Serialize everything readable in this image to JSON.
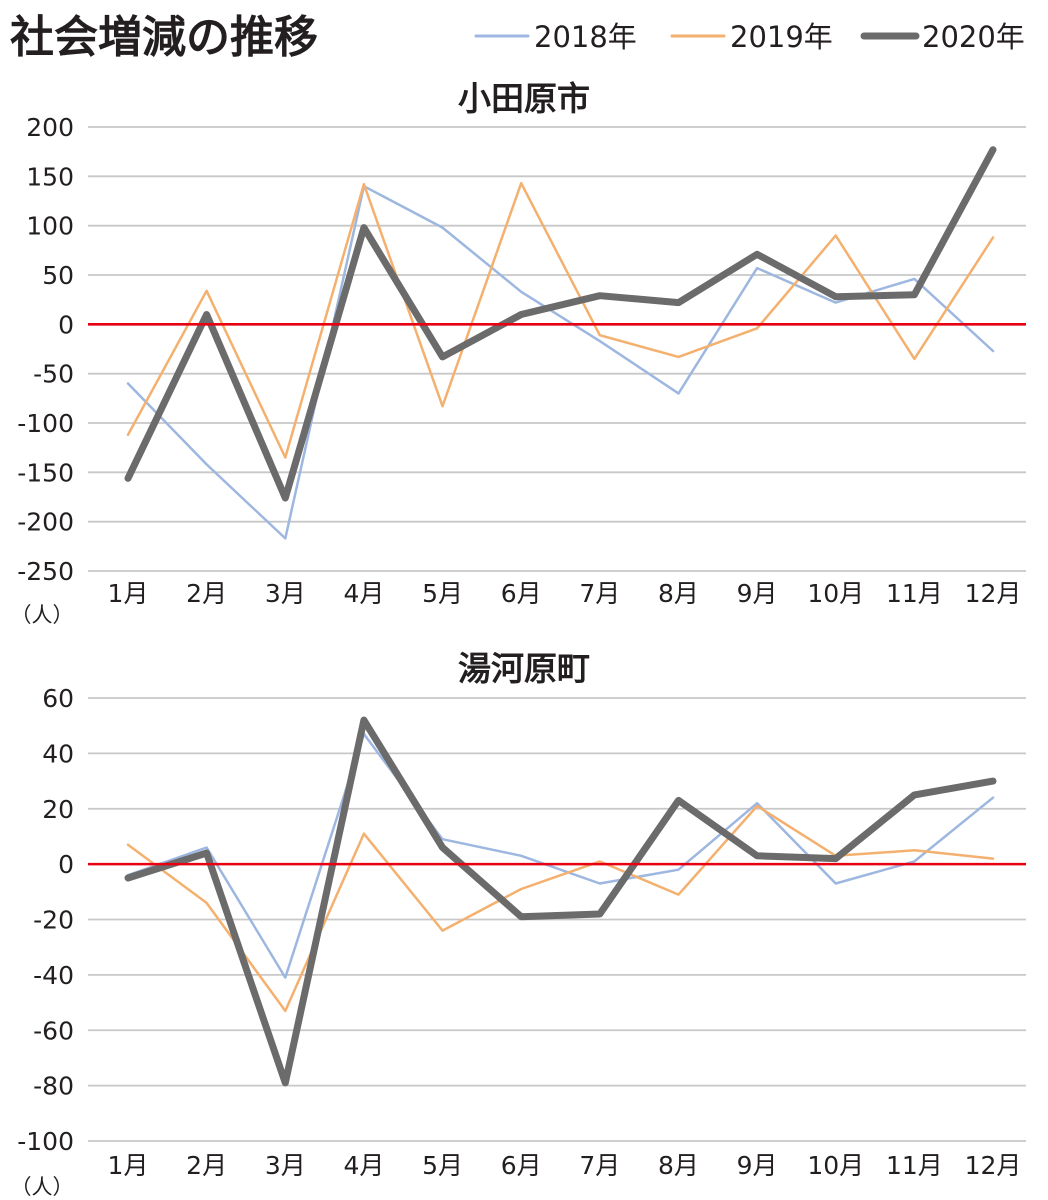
{
  "title": "社会増減の推移",
  "legend": [
    {
      "label": "2018年",
      "color": "#9db7e0"
    },
    {
      "label": "2019年",
      "color": "#f4b06e"
    },
    {
      "label": "2020年",
      "color": "#6b6b6b"
    }
  ],
  "zero_line_color": "#e60012",
  "chart_data": [
    {
      "type": "line",
      "title": "小田原市",
      "unit": "（人）",
      "categories": [
        "1月",
        "2月",
        "3月",
        "4月",
        "5月",
        "6月",
        "7月",
        "8月",
        "9月",
        "10月",
        "11月",
        "12月"
      ],
      "ylim": [
        -250,
        200
      ],
      "yticks": [
        200,
        150,
        100,
        50,
        0,
        -50,
        -100,
        -150,
        -200,
        -250
      ],
      "grid": true,
      "series": [
        {
          "name": "2018年",
          "values": [
            -60,
            -142,
            -217,
            140,
            98,
            33,
            -17,
            -70,
            57,
            22,
            46,
            -27
          ]
        },
        {
          "name": "2019年",
          "values": [
            -112,
            34,
            -135,
            142,
            -83,
            143,
            -11,
            -33,
            -4,
            90,
            -35,
            88
          ]
        },
        {
          "name": "2020年",
          "values": [
            -156,
            10,
            -176,
            98,
            -33,
            10,
            29,
            22,
            71,
            28,
            30,
            177
          ]
        }
      ]
    },
    {
      "type": "line",
      "title": "湯河原町",
      "unit": "（人）",
      "categories": [
        "1月",
        "2月",
        "3月",
        "4月",
        "5月",
        "6月",
        "7月",
        "8月",
        "9月",
        "10月",
        "11月",
        "12月"
      ],
      "ylim": [
        -100,
        60
      ],
      "yticks": [
        60,
        40,
        20,
        0,
        -20,
        -40,
        -60,
        -80,
        -100
      ],
      "grid": true,
      "series": [
        {
          "name": "2018年",
          "values": [
            -4,
            6,
            -41,
            47,
            9,
            3,
            -7,
            -2,
            22,
            -7,
            1,
            24
          ]
        },
        {
          "name": "2019年",
          "values": [
            7,
            -14,
            -53,
            11,
            -24,
            -9,
            1,
            -11,
            21,
            3,
            5,
            2
          ]
        },
        {
          "name": "2020年",
          "values": [
            -5,
            4,
            -79,
            52,
            6,
            -19,
            -18,
            23,
            3,
            2,
            25,
            30
          ]
        }
      ]
    }
  ]
}
